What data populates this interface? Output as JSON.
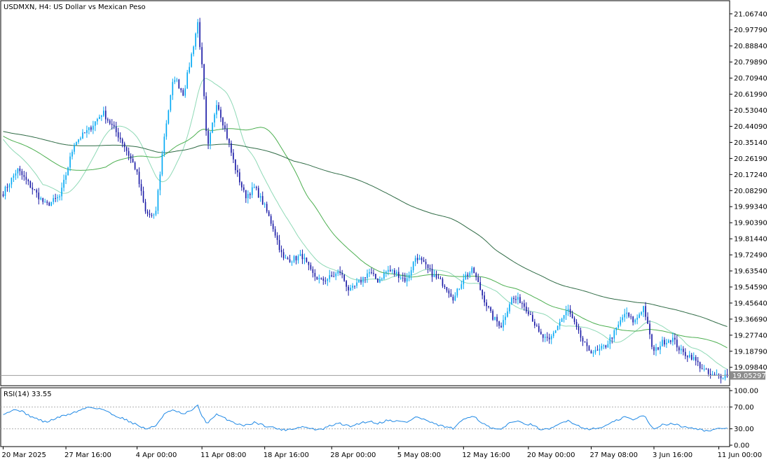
{
  "chart_data": [
    {
      "type": "candlestick",
      "title": "USDMXN, H4:  US Dollar vs Mexican Peso",
      "y_ticks": [
        "21.06740",
        "20.97790",
        "20.88840",
        "20.79890",
        "20.70940",
        "20.61990",
        "20.53040",
        "20.44090",
        "20.35140",
        "20.26190",
        "20.17240",
        "20.08290",
        "19.99340",
        "19.90390",
        "19.81440",
        "19.72490",
        "19.63540",
        "19.54590",
        "19.45640",
        "19.36690",
        "19.27740",
        "19.18790",
        "19.09840"
      ],
      "ylim": [
        19.035,
        21.09
      ],
      "current_price": "19.05297",
      "colors": {
        "up": "#03a9f4",
        "down": "#1a1aa6",
        "ma_fast": "#8fd9b6",
        "ma_mid": "#4caf50",
        "ma_slow": "#2f6b45",
        "price_line": "#9e9e9e"
      },
      "anchors": [
        [
          0,
          20.07
        ],
        [
          6,
          20.2
        ],
        [
          12,
          20.1
        ],
        [
          18,
          20.0
        ],
        [
          24,
          20.05
        ],
        [
          30,
          20.35
        ],
        [
          36,
          20.42
        ],
        [
          42,
          20.52
        ],
        [
          46,
          20.44
        ],
        [
          50,
          20.36
        ],
        [
          56,
          20.2
        ],
        [
          60,
          19.96
        ],
        [
          64,
          19.93
        ],
        [
          68,
          20.4
        ],
        [
          72,
          20.72
        ],
        [
          76,
          20.62
        ],
        [
          80,
          20.88
        ],
        [
          82,
          21.02
        ],
        [
          84,
          20.74
        ],
        [
          86,
          20.3
        ],
        [
          90,
          20.58
        ],
        [
          94,
          20.4
        ],
        [
          98,
          20.2
        ],
        [
          102,
          20.05
        ],
        [
          106,
          20.1
        ],
        [
          110,
          20.0
        ],
        [
          114,
          19.87
        ],
        [
          118,
          19.7
        ],
        [
          122,
          19.7
        ],
        [
          126,
          19.72
        ],
        [
          130,
          19.62
        ],
        [
          134,
          19.58
        ],
        [
          138,
          19.6
        ],
        [
          142,
          19.63
        ],
        [
          146,
          19.52
        ],
        [
          150,
          19.57
        ],
        [
          154,
          19.63
        ],
        [
          158,
          19.58
        ],
        [
          162,
          19.64
        ],
        [
          166,
          19.62
        ],
        [
          170,
          19.58
        ],
        [
          174,
          19.72
        ],
        [
          178,
          19.66
        ],
        [
          182,
          19.6
        ],
        [
          186,
          19.56
        ],
        [
          190,
          19.48
        ],
        [
          194,
          19.6
        ],
        [
          198,
          19.64
        ],
        [
          202,
          19.5
        ],
        [
          206,
          19.38
        ],
        [
          210,
          19.33
        ],
        [
          214,
          19.48
        ],
        [
          218,
          19.47
        ],
        [
          222,
          19.4
        ],
        [
          226,
          19.28
        ],
        [
          230,
          19.24
        ],
        [
          234,
          19.34
        ],
        [
          238,
          19.42
        ],
        [
          242,
          19.3
        ],
        [
          246,
          19.2
        ],
        [
          250,
          19.18
        ],
        [
          254,
          19.22
        ],
        [
          258,
          19.3
        ],
        [
          262,
          19.4
        ],
        [
          266,
          19.35
        ],
        [
          270,
          19.44
        ],
        [
          272,
          19.3
        ],
        [
          274,
          19.18
        ],
        [
          278,
          19.24
        ],
        [
          282,
          19.26
        ],
        [
          286,
          19.18
        ],
        [
          290,
          19.16
        ],
        [
          294,
          19.1
        ],
        [
          298,
          19.05
        ],
        [
          302,
          19.05
        ],
        [
          306,
          19.06
        ]
      ],
      "x_labels": [
        {
          "i": 0,
          "label": "20 Mar 2025"
        },
        {
          "i": 30,
          "label": "27 Mar 16:00"
        },
        {
          "i": 64,
          "label": "4 Apr 00:00"
        },
        {
          "i": 95,
          "label": "11 Apr 08:00"
        },
        {
          "i": 125,
          "label": "18 Apr 16:00"
        },
        {
          "i": 157,
          "label": "28 Apr 00:00"
        },
        {
          "i": 189,
          "label": "5 May 08:00"
        },
        {
          "i": 220,
          "label": "12 May 16:00"
        },
        {
          "i": 251,
          "label": "20 May 00:00"
        },
        {
          "i": 281,
          "label": "27 May 08:00"
        },
        {
          "i": 311,
          "label": "3 Jun 16:00"
        },
        {
          "i": 342,
          "label": "11 Jun 00:00"
        }
      ]
    },
    {
      "type": "line",
      "title": "RSI(14) 33.55",
      "y_ticks": [
        "100.00",
        "70.00",
        "30.00",
        "0.00"
      ],
      "ylim": [
        0,
        100
      ],
      "levels": [
        70,
        30
      ],
      "color": "#1e88e5",
      "anchors": [
        [
          0,
          58
        ],
        [
          6,
          66
        ],
        [
          12,
          52
        ],
        [
          18,
          42
        ],
        [
          24,
          52
        ],
        [
          30,
          60
        ],
        [
          36,
          70
        ],
        [
          42,
          66
        ],
        [
          46,
          56
        ],
        [
          50,
          50
        ],
        [
          56,
          38
        ],
        [
          60,
          30
        ],
        [
          64,
          34
        ],
        [
          68,
          58
        ],
        [
          72,
          64
        ],
        [
          76,
          56
        ],
        [
          80,
          66
        ],
        [
          82,
          72
        ],
        [
          84,
          52
        ],
        [
          86,
          40
        ],
        [
          90,
          56
        ],
        [
          94,
          48
        ],
        [
          98,
          40
        ],
        [
          102,
          36
        ],
        [
          106,
          42
        ],
        [
          110,
          36
        ],
        [
          114,
          32
        ],
        [
          118,
          28
        ],
        [
          122,
          30
        ],
        [
          126,
          34
        ],
        [
          130,
          30
        ],
        [
          134,
          28
        ],
        [
          138,
          36
        ],
        [
          142,
          40
        ],
        [
          146,
          34
        ],
        [
          150,
          40
        ],
        [
          154,
          44
        ],
        [
          158,
          40
        ],
        [
          162,
          46
        ],
        [
          166,
          44
        ],
        [
          170,
          42
        ],
        [
          174,
          52
        ],
        [
          178,
          46
        ],
        [
          182,
          38
        ],
        [
          186,
          34
        ],
        [
          190,
          30
        ],
        [
          194,
          48
        ],
        [
          198,
          55
        ],
        [
          202,
          40
        ],
        [
          206,
          30
        ],
        [
          210,
          28
        ],
        [
          214,
          44
        ],
        [
          218,
          42
        ],
        [
          222,
          38
        ],
        [
          226,
          30
        ],
        [
          230,
          28
        ],
        [
          234,
          38
        ],
        [
          238,
          46
        ],
        [
          242,
          36
        ],
        [
          246,
          30
        ],
        [
          250,
          30
        ],
        [
          254,
          36
        ],
        [
          258,
          44
        ],
        [
          262,
          52
        ],
        [
          266,
          46
        ],
        [
          270,
          56
        ],
        [
          272,
          40
        ],
        [
          274,
          30
        ],
        [
          278,
          38
        ],
        [
          282,
          40
        ],
        [
          286,
          34
        ],
        [
          290,
          33
        ],
        [
          294,
          28
        ],
        [
          298,
          26
        ],
        [
          302,
          30
        ],
        [
          306,
          33
        ]
      ]
    }
  ]
}
